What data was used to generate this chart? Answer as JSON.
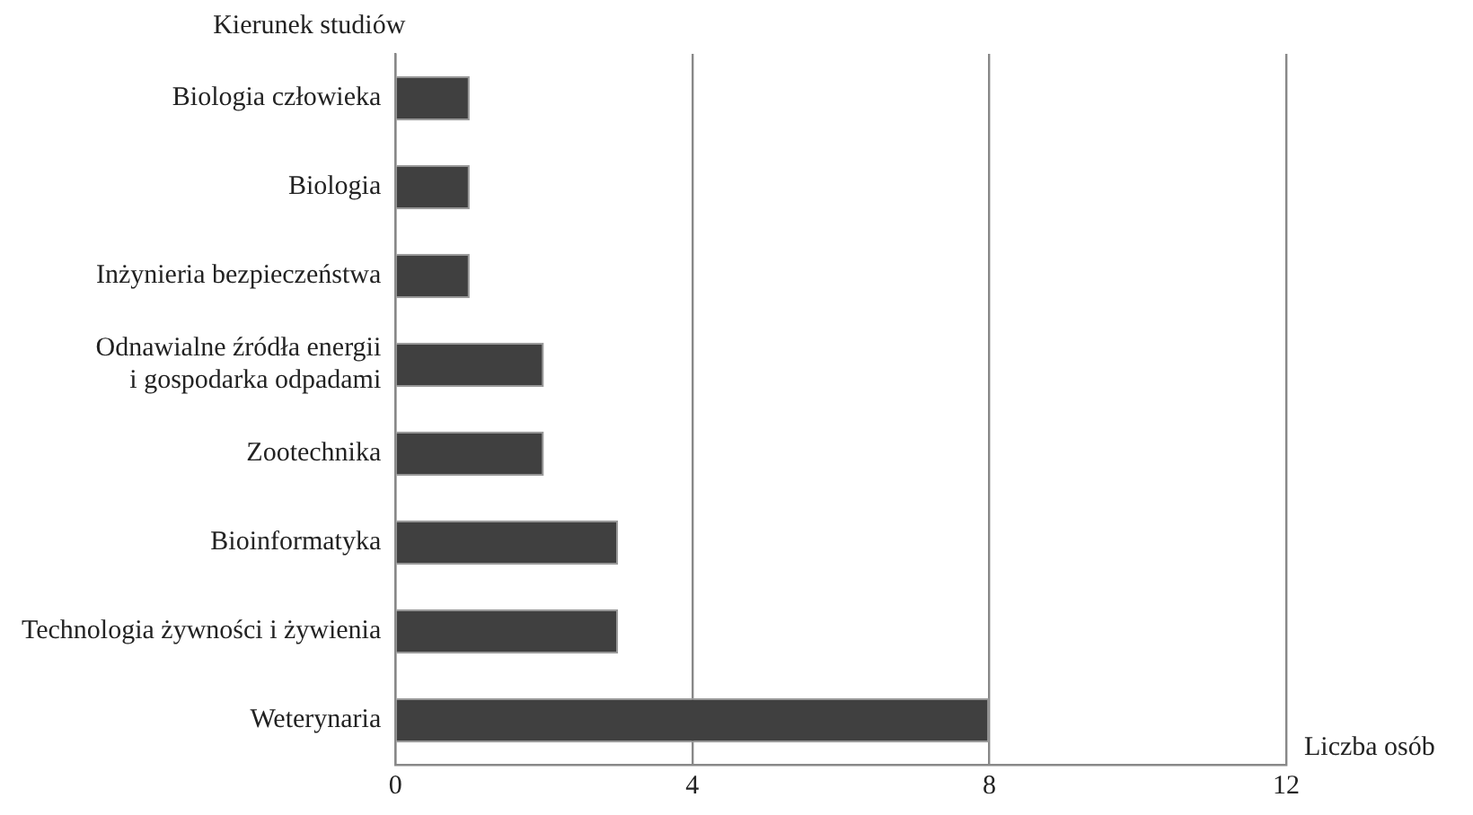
{
  "chart_data": {
    "type": "bar",
    "orientation": "horizontal",
    "ylabel": "Kierunek studiów",
    "xlabel": "Liczba osób",
    "categories": [
      "Biologia człowieka",
      "Biologia",
      "Inżynieria bezpieczeństwa",
      "Odnawialne źródła energii\ni gospodarka odpadami",
      "Zootechnika",
      "Bioinformatyka",
      "Technologia żywności i żywienia",
      "Weterynaria"
    ],
    "values": [
      1,
      1,
      1,
      2,
      2,
      3,
      3,
      8
    ],
    "color": "#404040",
    "xlim": [
      0,
      12
    ],
    "xticks": [
      0,
      4,
      8,
      12
    ],
    "grid": "x",
    "legend": false
  }
}
